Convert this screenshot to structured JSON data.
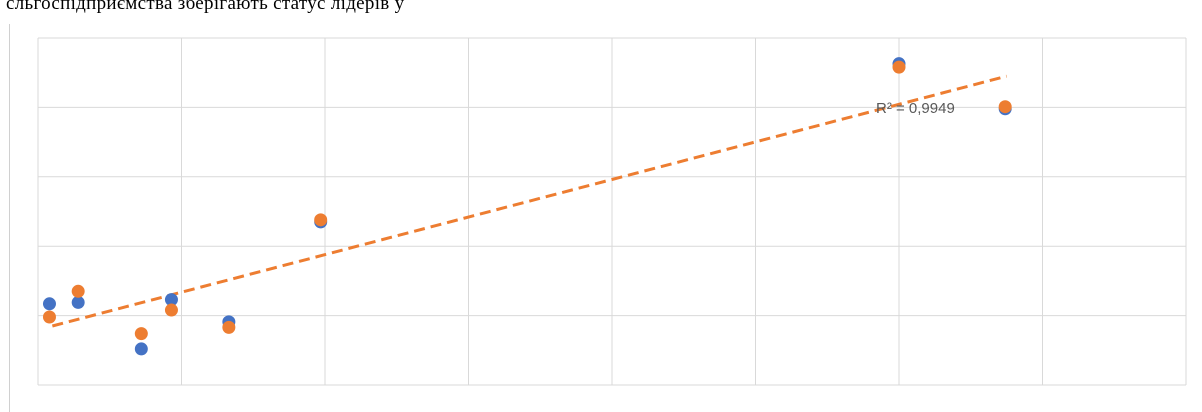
{
  "caption": "сльгоспідприємства зберігають статус лідерів у",
  "chart_data": {
    "type": "scatter",
    "title": "",
    "xlabel": "",
    "ylabel": "",
    "xlim": [
      0,
      8
    ],
    "ylim": [
      0,
      5
    ],
    "grid": true,
    "legend": "none",
    "trendline": {
      "type": "linear",
      "style": "dashed",
      "color": "#ED7D31",
      "x": [
        0.1,
        6.75
      ],
      "y": [
        0.85,
        4.45
      ],
      "r2_label": "R² = 0,9949"
    },
    "series": [
      {
        "color": "#4472C4",
        "points": [
          [
            0.08,
            1.17
          ],
          [
            0.28,
            1.19
          ],
          [
            0.72,
            0.52
          ],
          [
            0.93,
            1.23
          ],
          [
            1.33,
            0.91
          ],
          [
            1.97,
            2.35
          ],
          [
            6.0,
            4.63
          ],
          [
            6.74,
            3.98
          ]
        ]
      },
      {
        "color": "#ED7D31",
        "points": [
          [
            0.08,
            0.98
          ],
          [
            0.28,
            1.35
          ],
          [
            0.72,
            0.74
          ],
          [
            0.93,
            1.08
          ],
          [
            1.33,
            0.83
          ],
          [
            1.97,
            2.38
          ],
          [
            6.0,
            4.58
          ],
          [
            6.74,
            4.01
          ]
        ]
      }
    ]
  }
}
